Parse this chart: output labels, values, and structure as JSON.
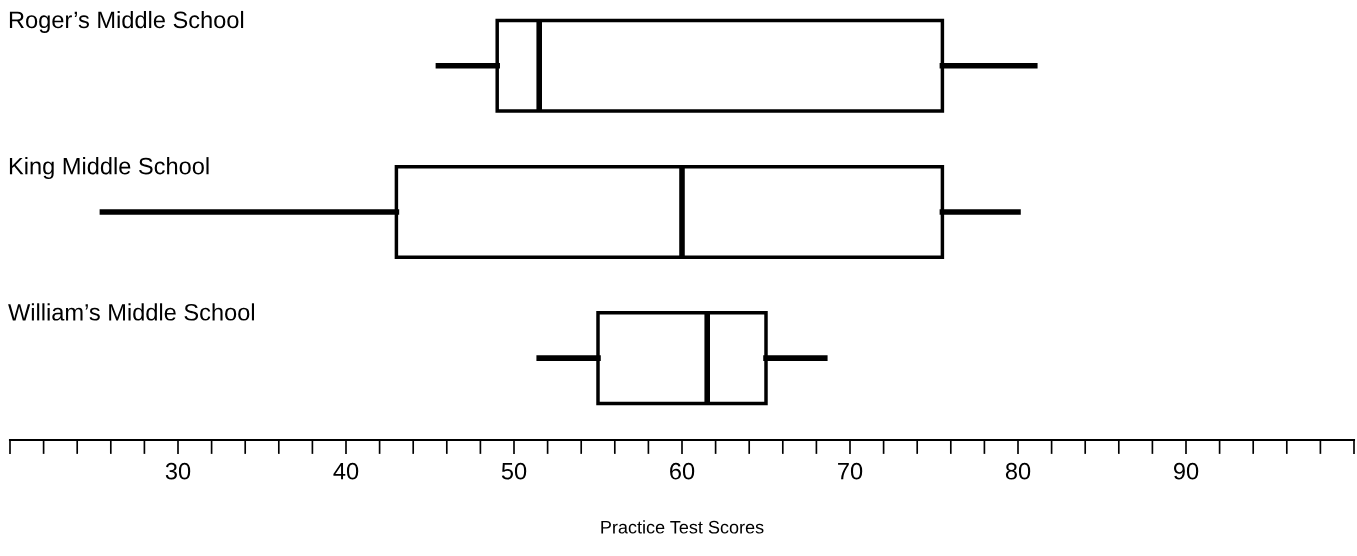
{
  "chart_data": {
    "type": "box",
    "orientation": "horizontal",
    "xlabel": "Practice Test Scores",
    "categories": [
      "Roger’s Middle School",
      "King Middle School",
      "William’s Middle School"
    ],
    "boxes": [
      {
        "low": 45.5,
        "q1": 49,
        "median": 51.5,
        "q3": 75.5,
        "high": 81
      },
      {
        "low": 25.5,
        "q1": 43,
        "median": 60,
        "q3": 75.5,
        "high": 80
      },
      {
        "low": 51.5,
        "q1": 55,
        "median": 61.5,
        "q3": 65,
        "high": 68.5
      }
    ],
    "xlim": [
      20,
      100
    ],
    "xticks": [
      {
        "value": 20,
        "label": null
      },
      {
        "value": 22,
        "label": null
      },
      {
        "value": 24,
        "label": null
      },
      {
        "value": 26,
        "label": null
      },
      {
        "value": 28,
        "label": null
      },
      30,
      {
        "value": 32,
        "label": null
      },
      {
        "value": 34,
        "label": null
      },
      {
        "value": 36,
        "label": null
      },
      {
        "value": 38,
        "label": null
      },
      40,
      {
        "value": 42,
        "label": null
      },
      {
        "value": 44,
        "label": null
      },
      {
        "value": 46,
        "label": null
      },
      {
        "value": 48,
        "label": null
      },
      50,
      {
        "value": 52,
        "label": null
      },
      {
        "value": 54,
        "label": null
      },
      {
        "value": 56,
        "label": null
      },
      {
        "value": 58,
        "label": null
      },
      60,
      {
        "value": 62,
        "label": null
      },
      {
        "value": 64,
        "label": null
      },
      {
        "value": 66,
        "label": null
      },
      {
        "value": 68,
        "label": null
      },
      70,
      {
        "value": 72,
        "label": null
      },
      {
        "value": 74,
        "label": null
      },
      {
        "value": 76,
        "label": null
      },
      {
        "value": 78,
        "label": null
      },
      80,
      {
        "value": 82,
        "label": null
      },
      {
        "value": 84,
        "label": null
      },
      {
        "value": 86,
        "label": null
      },
      {
        "value": 88,
        "label": null
      },
      90,
      {
        "value": 92,
        "label": null
      },
      {
        "value": 94,
        "label": null
      },
      {
        "value": 96,
        "label": null
      },
      {
        "value": 98,
        "label": null
      },
      {
        "value": 100,
        "label": null
      }
    ],
    "grid": false
  }
}
